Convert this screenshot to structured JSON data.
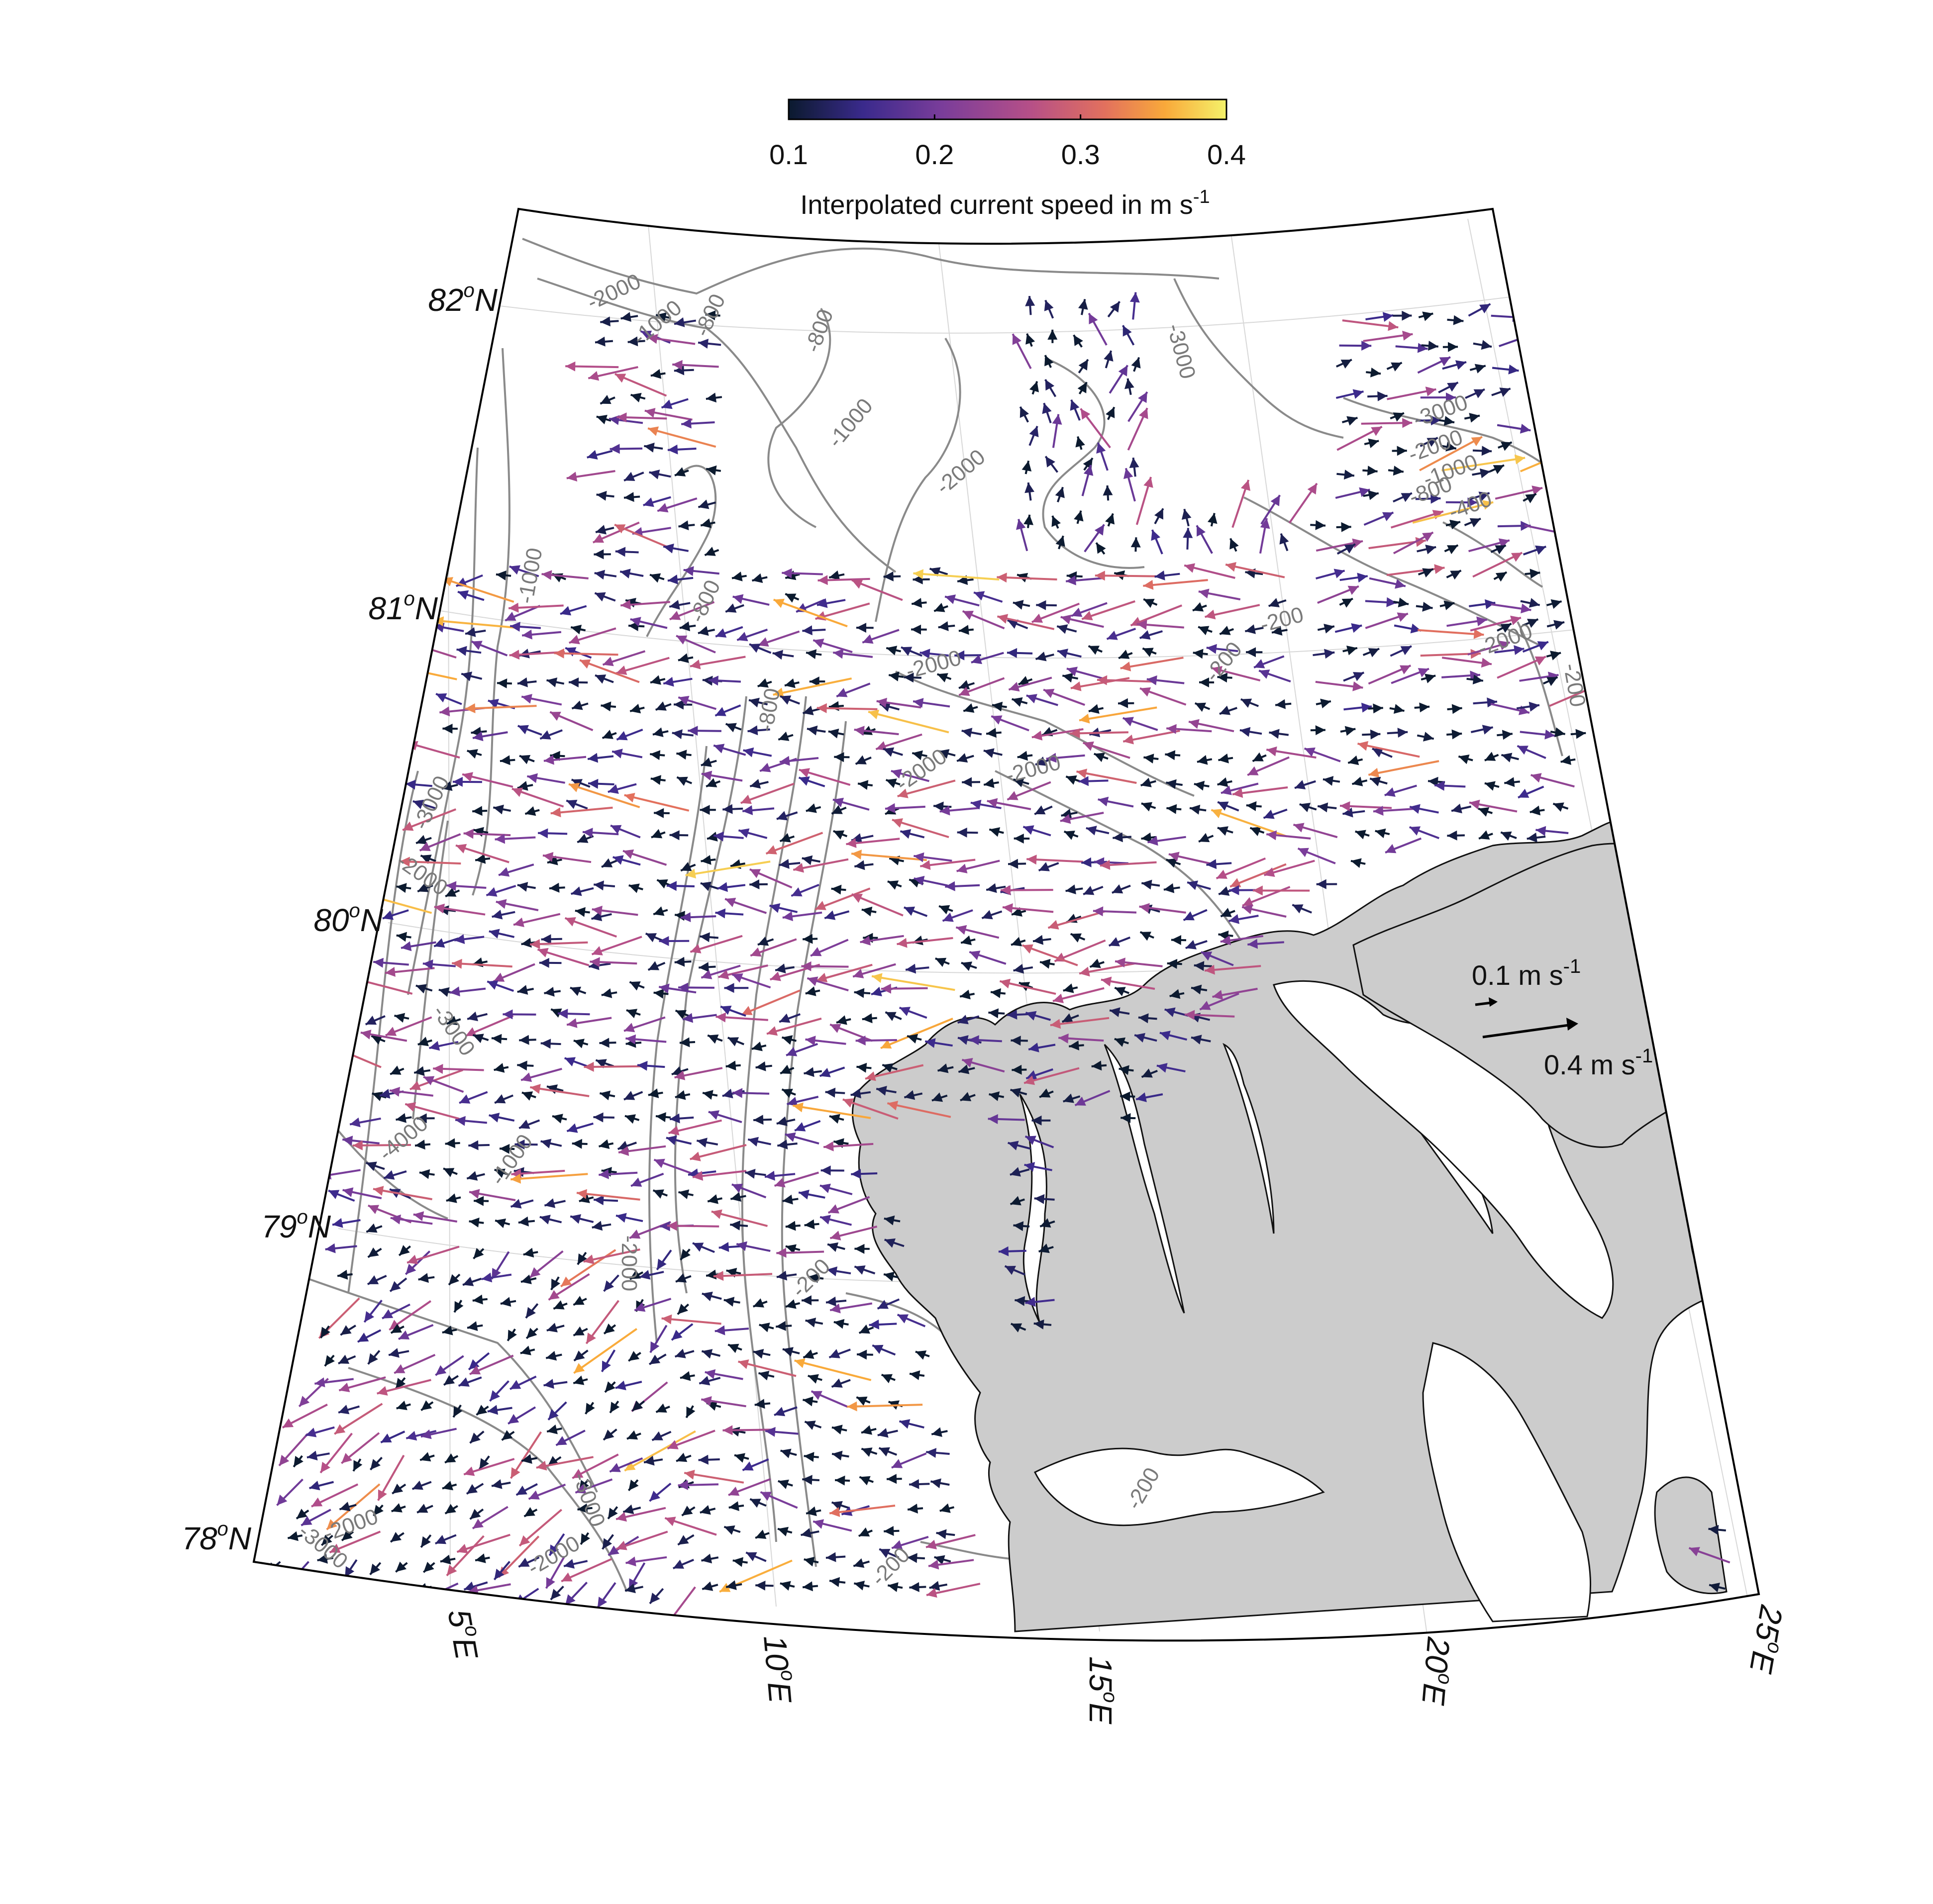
{
  "colorbar": {
    "title_main": "Interpolated current speed in m s",
    "title_sup": "-1",
    "ticks": [
      "0.1",
      "0.2",
      "0.3",
      "0.4"
    ],
    "min": 0.1,
    "max": 0.4,
    "colormap": [
      "#0b1a2e",
      "#3a2a8c",
      "#7a3d9a",
      "#b54f88",
      "#e2705e",
      "#f9a93a",
      "#f4f26a"
    ]
  },
  "map": {
    "lat_labels": [
      {
        "deg": "82",
        "unit": "o",
        "hem": "N"
      },
      {
        "deg": "81",
        "unit": "o",
        "hem": "N"
      },
      {
        "deg": "80",
        "unit": "o",
        "hem": "N"
      },
      {
        "deg": "79",
        "unit": "o",
        "hem": "N"
      },
      {
        "deg": "78",
        "unit": "o",
        "hem": "N"
      }
    ],
    "lon_labels": [
      {
        "deg": "5",
        "unit": "o",
        "hem": "E"
      },
      {
        "deg": "10",
        "unit": "o",
        "hem": "E"
      },
      {
        "deg": "15",
        "unit": "o",
        "hem": "E"
      },
      {
        "deg": "20",
        "unit": "o",
        "hem": "E"
      },
      {
        "deg": "25",
        "unit": "o",
        "hem": "E"
      }
    ],
    "land_color": "#cccccc",
    "contour_color": "#808080",
    "contour_labels": [
      "-2000",
      "-1000",
      "-800",
      "-800",
      "-3000",
      "-1000",
      "-2000",
      "-3000",
      "-2000",
      "-1000",
      "-800",
      "-400",
      "-1000",
      "-800",
      "-800",
      "-2000",
      "-200",
      "-2000",
      "-200",
      "-200",
      "-2000",
      "-2000",
      "-3000",
      "-2000",
      "-3000",
      "-4000",
      "-1000",
      "-200",
      "-2000",
      "-3000",
      "-2000",
      "-3000",
      "-2000",
      "-200",
      "-200"
    ]
  },
  "reference_arrows": {
    "small": {
      "value": "0.1 m s",
      "sup": "-1"
    },
    "large": {
      "value": "0.4 m s",
      "sup": "-1"
    }
  }
}
